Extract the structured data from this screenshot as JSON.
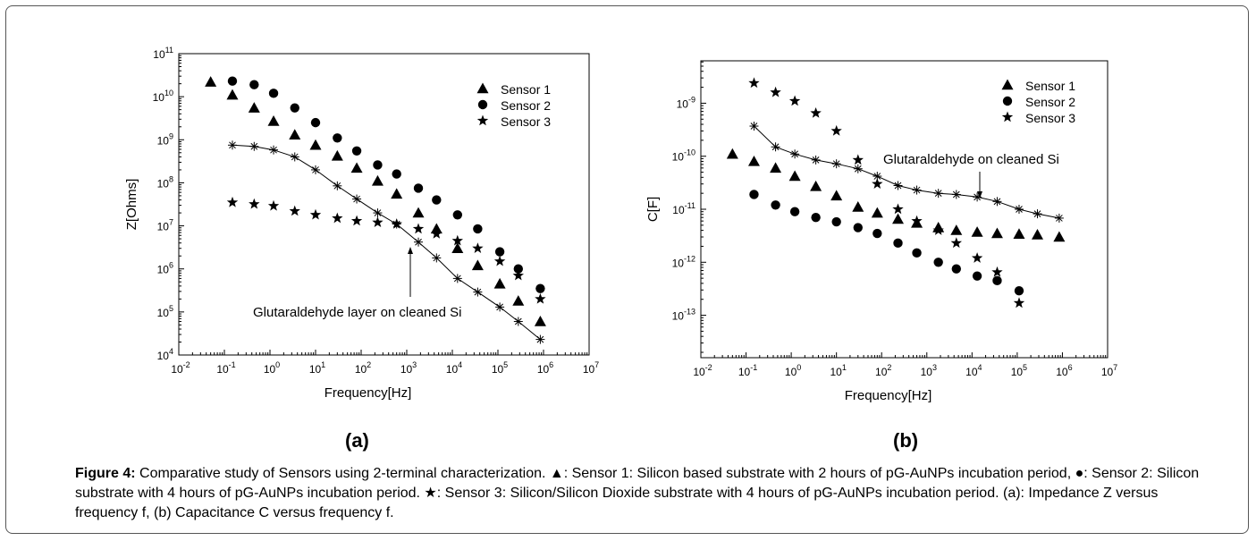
{
  "chart_data": [
    {
      "type": "scatter",
      "panel": "(a)",
      "xlabel": "Frequency[Hz]",
      "ylabel": "Z[Ohms]",
      "xscale": "log",
      "yscale": "log",
      "xlim_exp": [
        -2,
        7
      ],
      "ylim_exp": [
        4,
        11
      ],
      "x_ticks": [
        "10-2",
        "10-1",
        "100",
        "101",
        "102",
        "103",
        "104",
        "105",
        "106",
        "107"
      ],
      "y_ticks": [
        "104",
        "105",
        "106",
        "107",
        "108",
        "109",
        "1010",
        "1011"
      ],
      "legend_position": "top-right",
      "series": [
        {
          "name": "Sensor 1",
          "marker": "triangle",
          "x": [
            0.05,
            0.15,
            0.45,
            1.2,
            3.5,
            10,
            30,
            80,
            230,
            600,
            1800,
            4500,
            13000,
            36000,
            110000,
            280000,
            850000
          ],
          "y": [
            22000000000.0,
            11000000000.0,
            5500000000.0,
            2700000000.0,
            1300000000.0,
            750000000.0,
            420000000.0,
            220000000.0,
            110000000.0,
            55000000.0,
            20000000.0,
            8500000.0,
            3000000.0,
            1200000.0,
            450000.0,
            180000.0,
            60000.0
          ]
        },
        {
          "name": "Sensor 2",
          "marker": "circle",
          "x": [
            0.15,
            0.45,
            1.2,
            3.5,
            10,
            30,
            80,
            230,
            600,
            1800,
            4500,
            13000,
            36000,
            110000,
            280000,
            850000
          ],
          "y": [
            23000000000.0,
            19000000000.0,
            12000000000.0,
            5500000000.0,
            2500000000.0,
            1100000000.0,
            550000000.0,
            260000000.0,
            160000000.0,
            75000000.0,
            40000000.0,
            18000000.0,
            8500000.0,
            2500000.0,
            1000000.0,
            350000.0
          ]
        },
        {
          "name": "Sensor 3",
          "marker": "star",
          "x": [
            0.15,
            0.45,
            1.2,
            3.5,
            10,
            30,
            80,
            230,
            600,
            1800,
            4500,
            13000,
            36000,
            110000,
            280000,
            850000
          ],
          "y": [
            35000000.0,
            32000000.0,
            29000000.0,
            22000000.0,
            18000000.0,
            15000000.0,
            13000000.0,
            12000000.0,
            11000000.0,
            8500000.0,
            6500000.0,
            4500000.0,
            3000000.0,
            1500000.0,
            700000.0,
            200000.0
          ]
        },
        {
          "name": "Glutaraldehyde layer on cleaned Si",
          "marker": "asterisk-line",
          "x": [
            0.15,
            0.45,
            1.2,
            3.5,
            10,
            30,
            80,
            230,
            600,
            1800,
            4500,
            13000,
            36000,
            110000,
            280000,
            850000
          ],
          "y": [
            750000000.0,
            700000000.0,
            580000000.0,
            400000000.0,
            200000000.0,
            85000000.0,
            42000000.0,
            20000000.0,
            11000000.0,
            4200000.0,
            1800000.0,
            600000.0,
            290000.0,
            130000.0,
            60000.0,
            23000.0
          ]
        }
      ],
      "annotation": "Glutaraldehyde layer on cleaned Si"
    },
    {
      "type": "scatter",
      "panel": "(b)",
      "xlabel": "Frequency[Hz]",
      "ylabel": "C[F]",
      "xscale": "log",
      "yscale": "log",
      "xlim_exp": [
        -2,
        7
      ],
      "ylim_exp": [
        -13.8,
        -8.2
      ],
      "x_ticks": [
        "10-2",
        "10-1",
        "100",
        "101",
        "102",
        "103",
        "104",
        "105",
        "106",
        "107"
      ],
      "y_ticks": [
        "10-13",
        "10-12",
        "10-11",
        "10-10",
        "10-9"
      ],
      "legend_position": "top-right",
      "series": [
        {
          "name": "Sensor 1",
          "marker": "triangle",
          "x": [
            0.05,
            0.15,
            0.45,
            1.2,
            3.5,
            10,
            30,
            80,
            230,
            600,
            1800,
            4500,
            13000,
            36000,
            110000,
            280000,
            850000
          ],
          "y": [
            1.1e-10,
            8e-11,
            6e-11,
            4.2e-11,
            2.7e-11,
            1.8e-11,
            1.1e-11,
            8.5e-12,
            6.5e-12,
            5.5e-12,
            4.5e-12,
            4e-12,
            3.7e-12,
            3.5e-12,
            3.4e-12,
            3.3e-12,
            3e-12
          ]
        },
        {
          "name": "Sensor 2",
          "marker": "circle",
          "x": [
            0.15,
            0.45,
            1.2,
            3.5,
            10,
            30,
            80,
            230,
            600,
            1800,
            4500,
            13000,
            36000,
            110000
          ],
          "y": [
            1.9e-11,
            1.2e-11,
            9e-12,
            7e-12,
            5.8e-12,
            4.5e-12,
            3.5e-12,
            2.3e-12,
            1.5e-12,
            1e-12,
            7.5e-13,
            5.5e-13,
            4.5e-13,
            2.9e-13
          ]
        },
        {
          "name": "Sensor 3",
          "marker": "star",
          "x": [
            0.15,
            0.45,
            1.2,
            3.5,
            10,
            30,
            80,
            230,
            600,
            1800,
            4500,
            13000,
            36000,
            110000
          ],
          "y": [
            2.4e-09,
            1.6e-09,
            1.1e-09,
            6.5e-10,
            3e-10,
            8.5e-11,
            3e-11,
            1e-11,
            6e-12,
            4e-12,
            2.3e-12,
            1.2e-12,
            6.5e-13,
            1.7e-13
          ]
        },
        {
          "name": "Glutaraldehyde on cleaned Si",
          "marker": "asterisk-line",
          "x": [
            0.15,
            0.45,
            1.2,
            3.5,
            10,
            30,
            80,
            230,
            600,
            1800,
            4500,
            13000,
            36000,
            110000,
            280000,
            850000
          ],
          "y": [
            3.7e-10,
            1.5e-10,
            1.1e-10,
            8.5e-11,
            7.2e-11,
            5.8e-11,
            4.2e-11,
            2.8e-11,
            2.3e-11,
            2e-11,
            1.9e-11,
            1.7e-11,
            1.4e-11,
            1e-11,
            8.2e-12,
            6.8e-12
          ]
        }
      ],
      "annotation": "Glutaraldehyde on cleaned Si"
    }
  ],
  "panel_labels": {
    "a": "(a)",
    "b": "(b)"
  },
  "caption": {
    "figure_label": "Figure 4:",
    "text": " Comparative study of Sensors using 2-terminal characterization. ▲: Sensor 1: Silicon based substrate with 2 hours of pG-AuNPs incubation period, ●: Sensor 2: Silicon substrate with 4 hours of pG-AuNPs incubation period. ★: Sensor 3: Silicon/Silicon Dioxide substrate with 4 hours of pG-AuNPs incubation period. (a): Impedance Z versus frequency f, (b) Capacitance C versus frequency f."
  }
}
